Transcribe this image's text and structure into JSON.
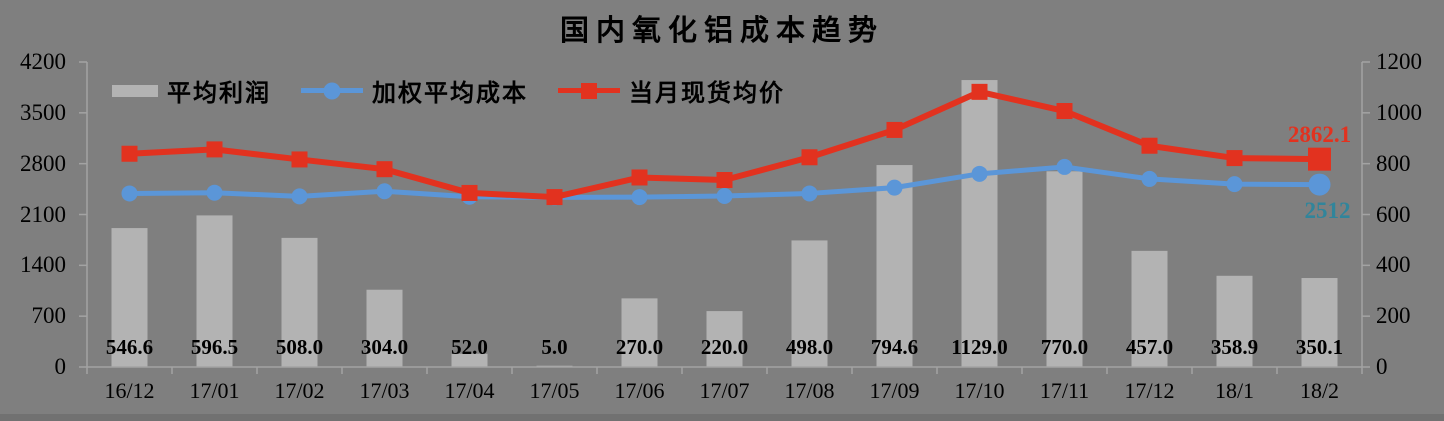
{
  "title": "国内氧化铝成本趋势",
  "background_color": "#7f7f7f",
  "chart_data": {
    "type": "bar",
    "subtype": "combo-bar-line",
    "title": "国内氧化铝成本趋势",
    "grid": false,
    "legend_position": "top-left",
    "categories": [
      "16/12",
      "17/01",
      "17/02",
      "17/03",
      "17/04",
      "17/05",
      "17/06",
      "17/07",
      "17/08",
      "17/09",
      "17/10",
      "17/11",
      "17/12",
      "18/1",
      "18/2"
    ],
    "left_axis": {
      "min": 0,
      "max": 4200,
      "ticks": [
        0,
        700,
        1400,
        2100,
        2800,
        3500,
        4200
      ]
    },
    "right_axis": {
      "min": 0,
      "max": 1200,
      "ticks": [
        0,
        200,
        400,
        600,
        800,
        1000,
        1200
      ]
    },
    "series": [
      {
        "name": "平均利润",
        "type": "bar",
        "axis": "right",
        "color": "#b3b3b3",
        "values": [
          546.6,
          596.5,
          508.0,
          304.0,
          52.0,
          5.0,
          270.0,
          220.0,
          498.0,
          794.6,
          1129.0,
          770.0,
          457.0,
          358.9,
          350.1
        ],
        "labels": [
          "546.6",
          "596.5",
          "508.0",
          "304.0",
          "52.0",
          "5.0",
          "270.0",
          "220.0",
          "498.0",
          "794.6",
          "1129.0",
          "770.0",
          "457.0",
          "358.9",
          "350.1"
        ]
      },
      {
        "name": "加权平均成本",
        "type": "line",
        "axis": "left",
        "color": "#5b96d8",
        "marker": "circle",
        "values": [
          2390,
          2400,
          2350,
          2420,
          2345,
          2335,
          2340,
          2355,
          2390,
          2470,
          2660,
          2755,
          2590,
          2518,
          2512
        ],
        "values_note": "estimated from plot except final labeled point 2512",
        "end_label": {
          "text": "2512",
          "color": "#31859b"
        }
      },
      {
        "name": "当月现货均价",
        "type": "line",
        "axis": "left",
        "color": "#e2321f",
        "marker": "square",
        "values": [
          2936.6,
          2996.5,
          2858.0,
          2724.0,
          2397.0,
          2340.0,
          2610.0,
          2575.0,
          2888.0,
          3264.6,
          3789.0,
          3525.0,
          3047.0,
          2876.9,
          2862.1
        ],
        "values_note": "estimated from plot except final labeled point 2862.1",
        "end_label": {
          "text": "2862.1",
          "color": "#e2321f"
        }
      }
    ],
    "axis_line_color": "#a3a3a3"
  }
}
